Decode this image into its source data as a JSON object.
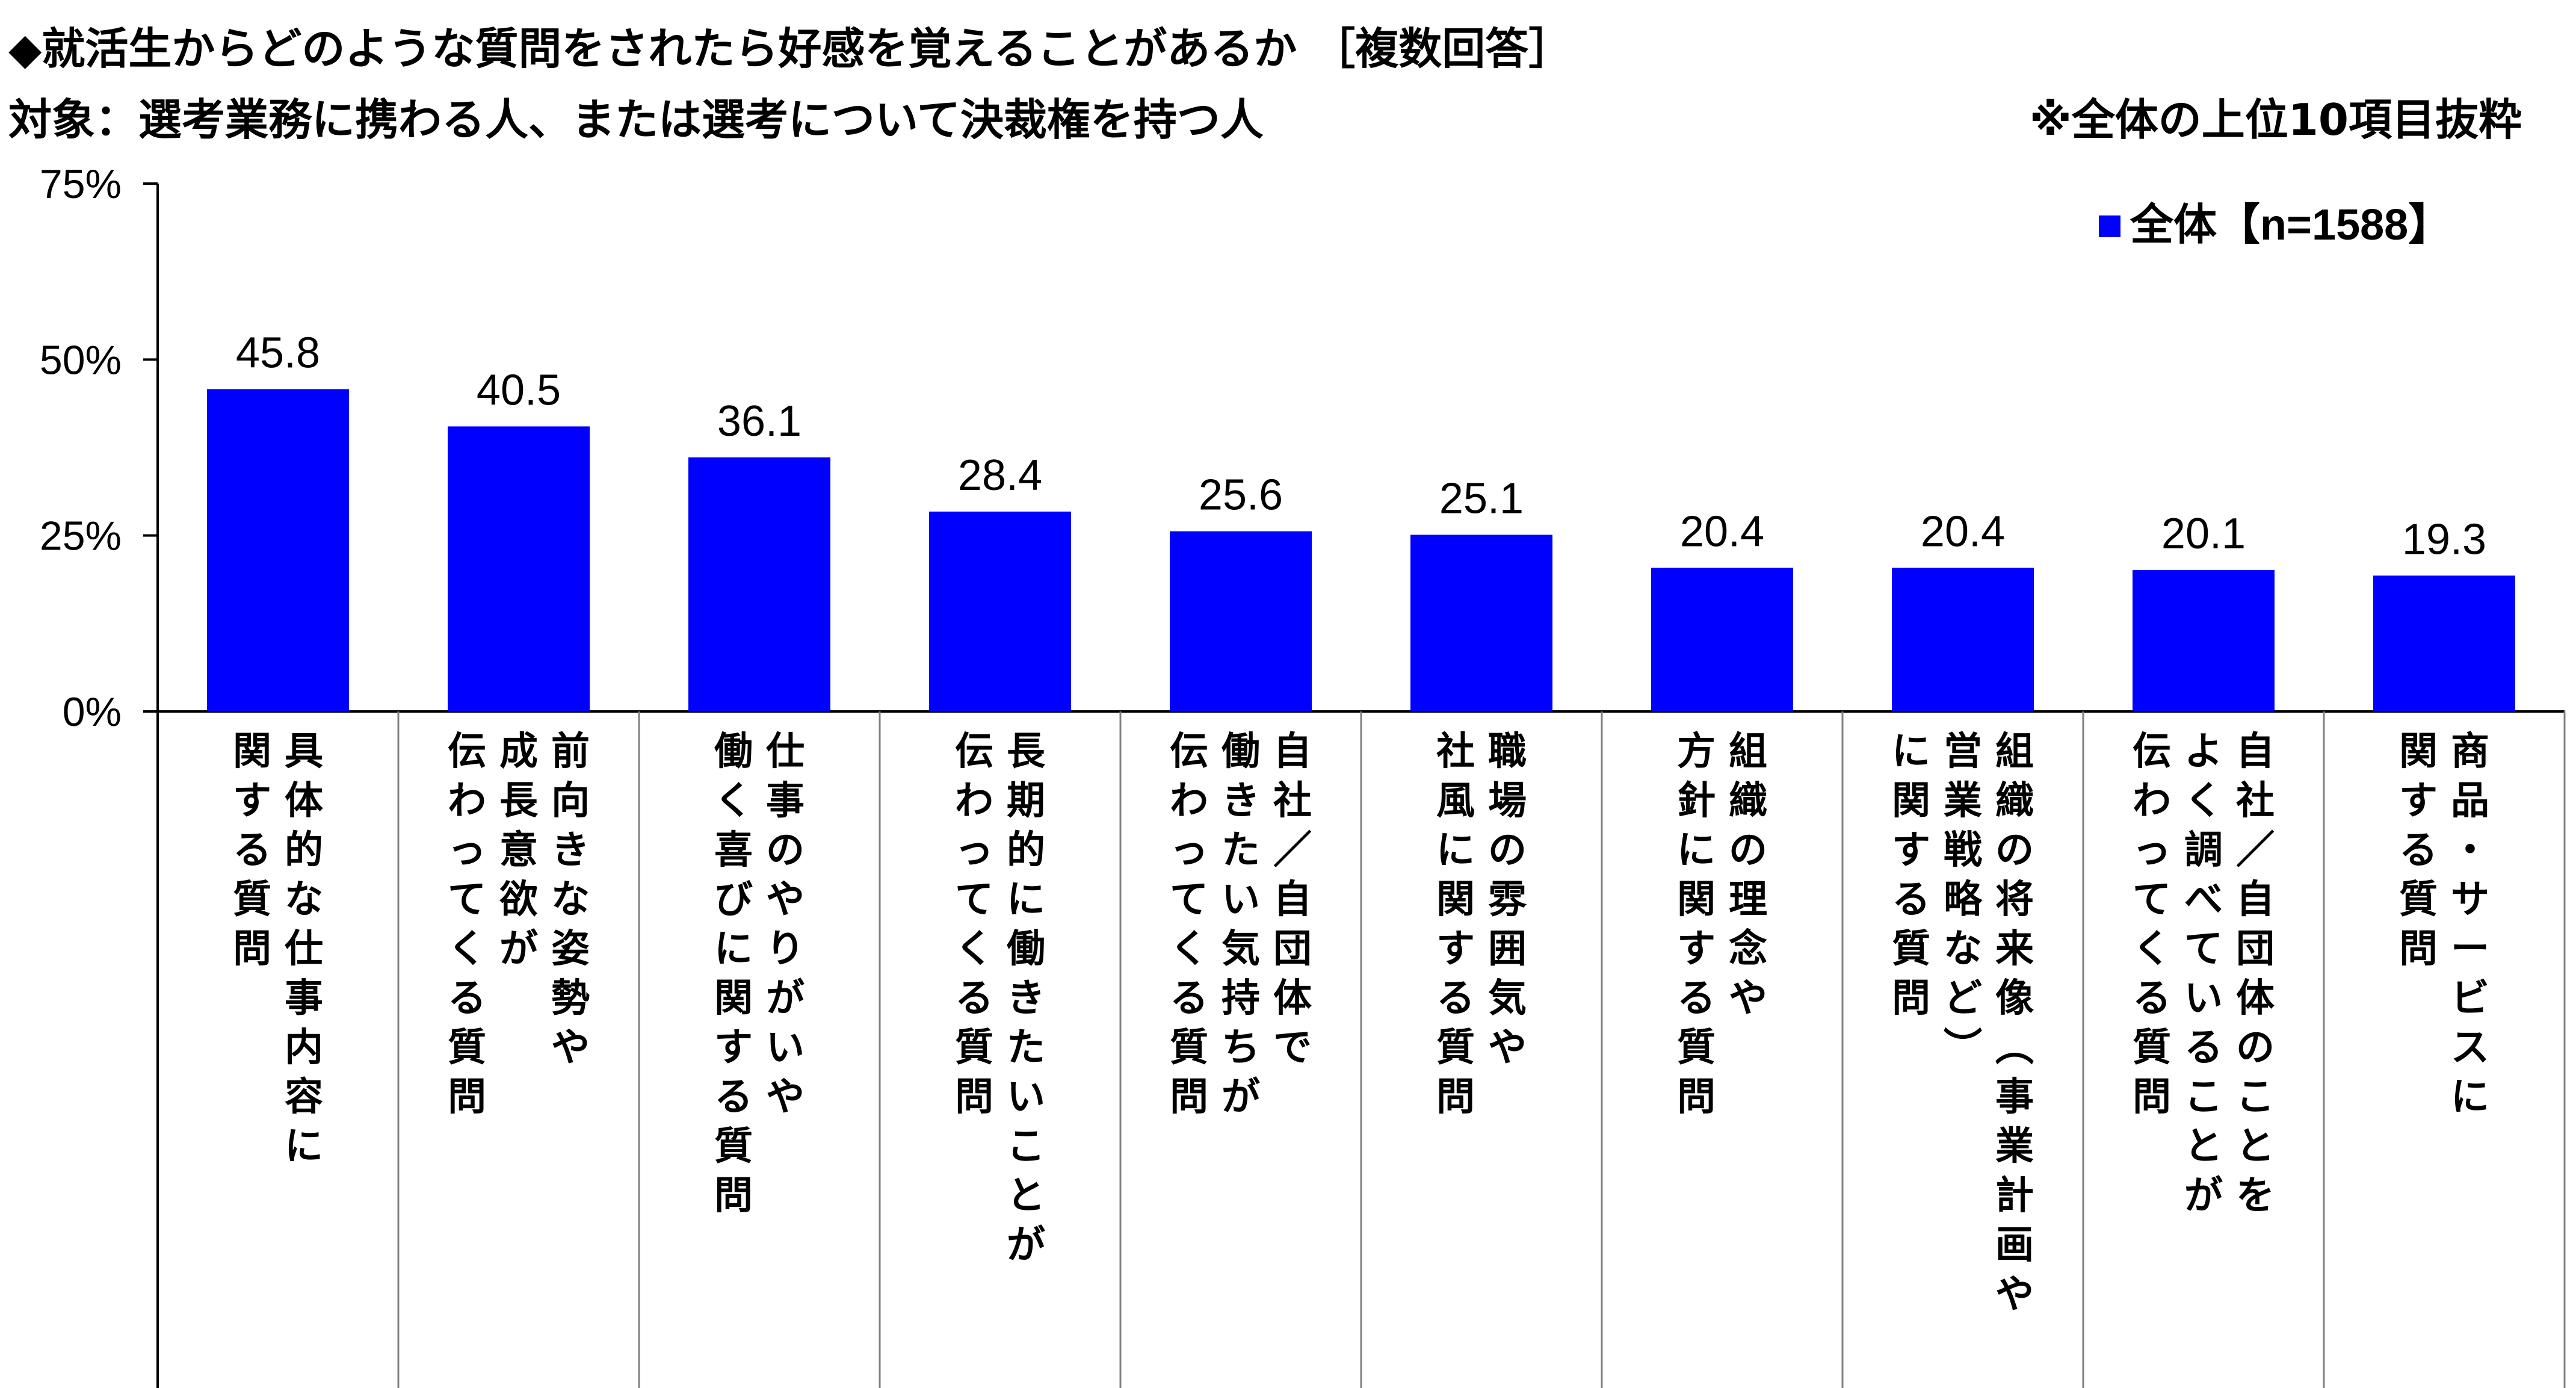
{
  "header": {
    "title": "◆就活生からどのような質問をされたら好感を覚えることがあるか ［複数回答］",
    "subtitle": "対象：選考業務に携わる人、または選考について決裁権を持つ人",
    "note": "※全体の上位10項目抜粋"
  },
  "colors": {
    "bar": "#0000FF",
    "axis": "#000000",
    "divider": "#808080"
  },
  "chart_data": {
    "type": "bar",
    "title": "◆就活生からどのような質問をされたら好感を覚えることがあるか ［複数回答］",
    "ylim": [
      0,
      75
    ],
    "yticks": [
      "0%",
      "25%",
      "50%",
      "75%"
    ],
    "ytick_values": [
      0,
      25,
      50,
      75
    ],
    "grid": false,
    "legend_position": "top-right",
    "series": [
      {
        "name": "全体【n=1588】",
        "values": [
          45.8,
          40.5,
          36.1,
          28.4,
          25.6,
          25.1,
          20.4,
          20.4,
          20.1,
          19.3
        ]
      }
    ],
    "value_labels": [
      "45.8",
      "40.5",
      "36.1",
      "28.4",
      "25.6",
      "25.1",
      "20.4",
      "20.4",
      "20.1",
      "19.3"
    ],
    "categories": [
      "具体的な仕事内容に関する質問",
      "前向きな姿勢や成長意欲が伝わってくる質問",
      "仕事のやりがいや働く喜びに関する質問",
      "長期的に働きたいことが伝わってくる質問",
      "自社／自団体で働きたい気持ちが伝わってくる質問",
      "職場の雰囲気や社風に関する質問",
      "組織の理念や方針に関する質問",
      "組織の将来像（事業計画や営業戦略など）に関する質問",
      "自社／自団体のことをよく調べていることが伝わってくる質問",
      "商品・サービスに関する質問"
    ],
    "category_columns": [
      [
        "具体的な仕事内容に",
        "関する質問"
      ],
      [
        "前向きな姿勢や",
        "成長意欲が",
        "伝わってくる質問"
      ],
      [
        "仕事のやりがいや",
        "働く喜びに関する質問"
      ],
      [
        "長期的に働きたいことが",
        "伝わってくる質問"
      ],
      [
        "自社／自団体で",
        "働きたい気持ちが",
        "伝わってくる質問"
      ],
      [
        "職場の雰囲気や",
        "社風に関する質問"
      ],
      [
        "組織の理念や",
        "方針に関する質問"
      ],
      [
        "組織の将来像（事業計画や",
        "営業戦略など）",
        "に関する質問"
      ],
      [
        "自社／自団体のことを",
        "よく調べていることが",
        "伝わってくる質問"
      ],
      [
        "商品・サービスに",
        "関する質問"
      ]
    ]
  }
}
